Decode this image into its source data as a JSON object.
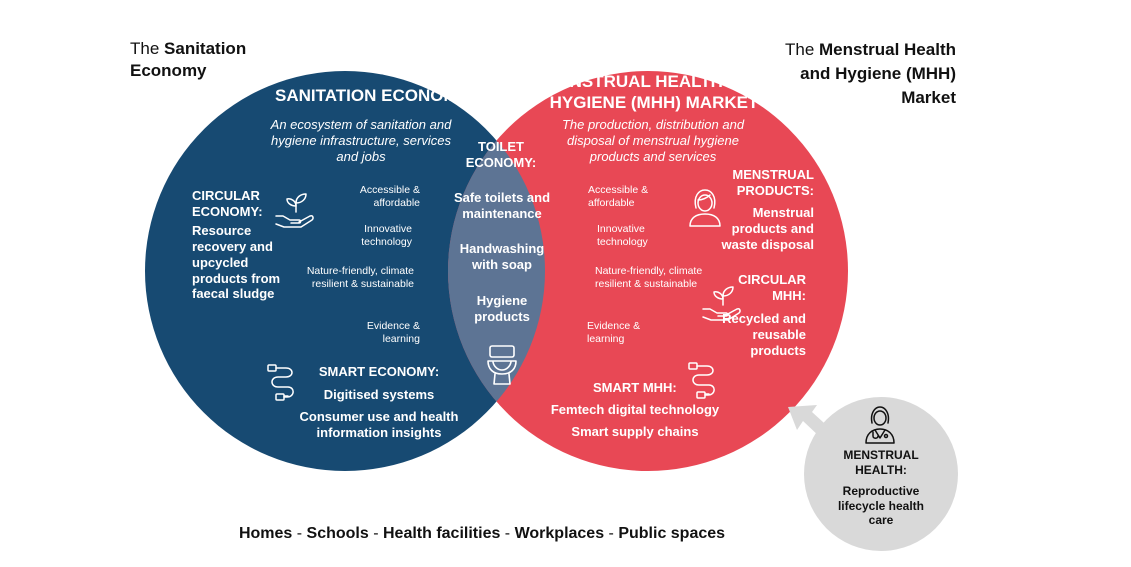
{
  "colors": {
    "sanitation": "#174a72",
    "mhh": "#e84855",
    "overlap": "#5d7494",
    "health_circle": "#d9d9d9",
    "text_dark": "#111111"
  },
  "corner_labels": {
    "left_plain": "The ",
    "left_bold": "Sanitation Economy",
    "right_plain": "The ",
    "right_bold": "Menstrual Health and Hygiene (MHH) Market"
  },
  "sanitation": {
    "title": "SANITATION ECONOMY",
    "subtitle": "An ecosystem of sanitation and hygiene infrastructure, services and jobs",
    "circular_title": "CIRCULAR ECONOMY:",
    "circular_body": "Resource recovery and upcycled products from faecal sludge",
    "attributes": [
      "Accessible & affordable",
      "Innovative technology",
      "Nature-friendly, climate resilient & sustainable",
      "Evidence & learning"
    ],
    "smart_title": "SMART ECONOMY:",
    "smart_items": [
      "Digitised systems",
      "Consumer use and health information insights"
    ]
  },
  "toilet": {
    "title": "TOILET ECONOMY:",
    "items": [
      "Safe toilets and maintenance",
      "Handwashing with soap",
      "Hygiene products"
    ]
  },
  "mhh": {
    "title": "MENSTRUAL HEALTH AND HYGIENE (MHH) MARKET",
    "subtitle": "The production, distribution and disposal of menstrual hygiene products and services",
    "attributes": [
      "Accessible & affordable",
      "Innovative technology",
      "Nature-friendly, climate resilient & sustainable",
      "Evidence & learning"
    ],
    "products_title": "MENSTRUAL PRODUCTS:",
    "products_body": "Menstrual products and waste disposal",
    "circular_title": "CIRCULAR MHH:",
    "circular_body": "Recycled and reusable products",
    "smart_title": "SMART MHH:",
    "smart_items": [
      "Femtech digital technology",
      "Smart supply chains"
    ]
  },
  "health": {
    "title": "MENSTRUAL HEALTH:",
    "body": "Reproductive lifecycle health care"
  },
  "footer": {
    "settings": [
      "Homes",
      "Schools",
      "Health facilities",
      "Workplaces",
      "Public spaces"
    ],
    "separator": " - "
  }
}
